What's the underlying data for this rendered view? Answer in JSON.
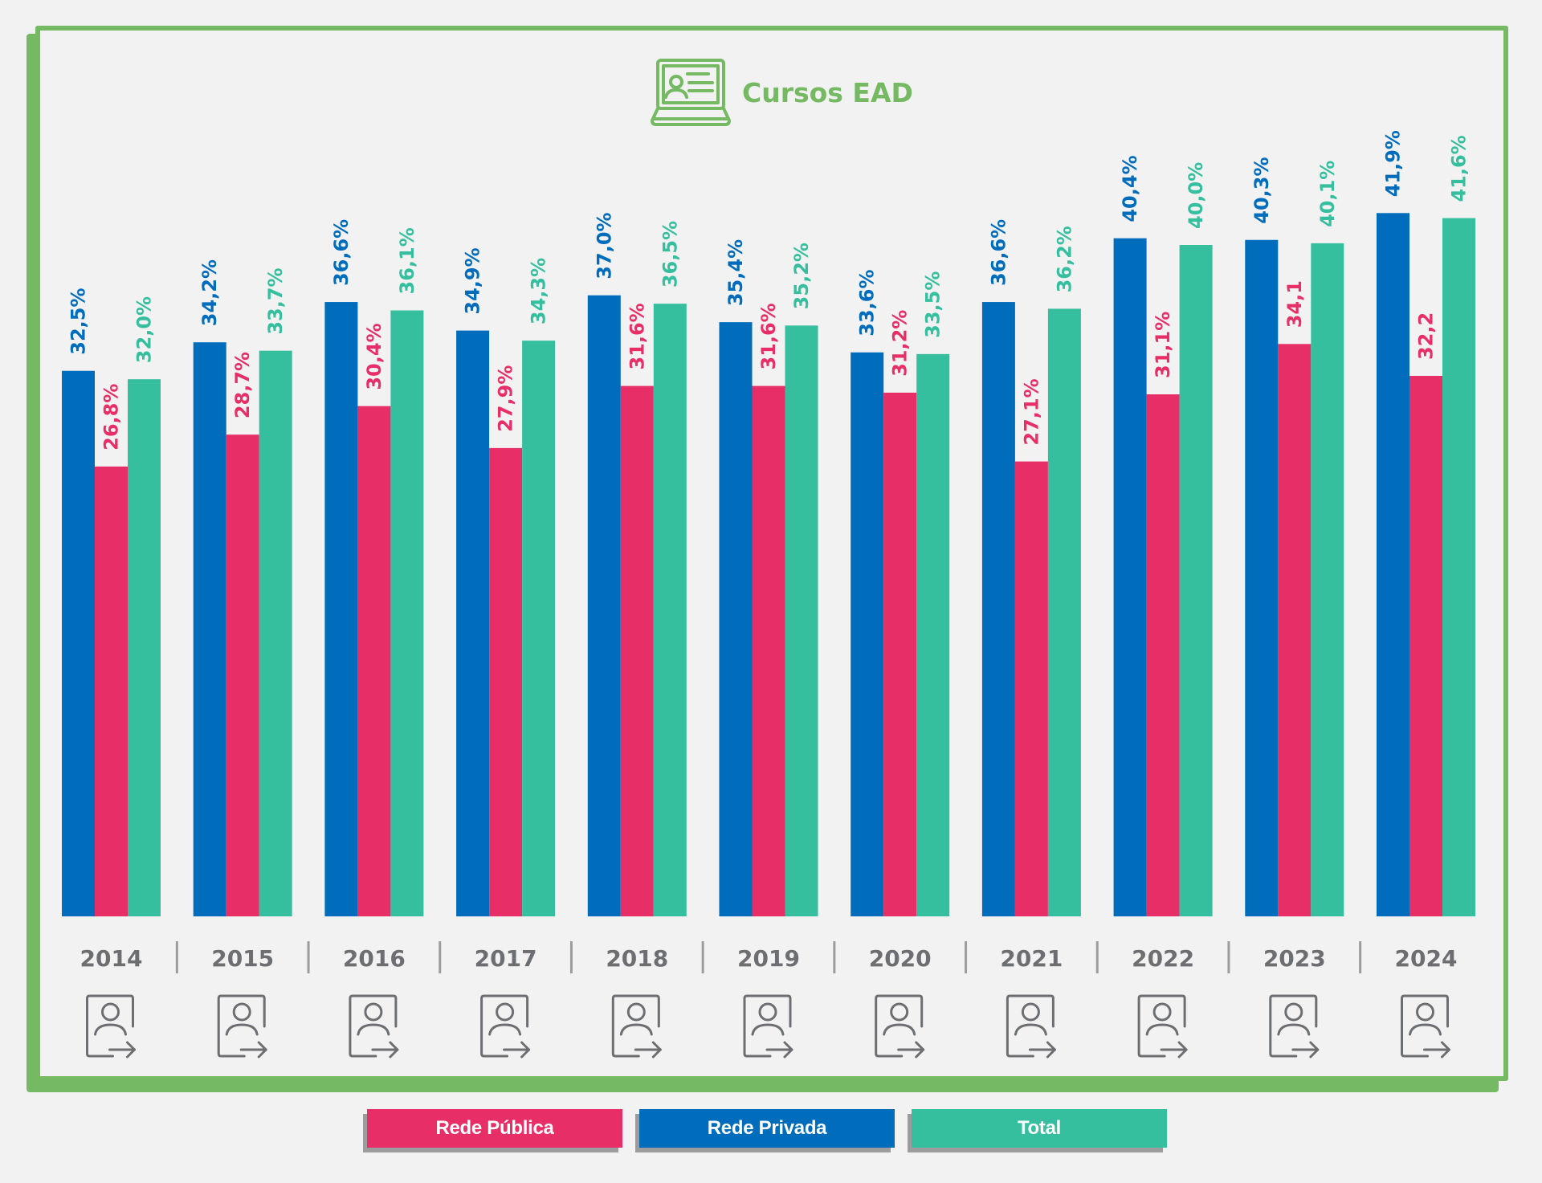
{
  "title": "Cursos EAD",
  "title_icon": "laptop-profile-icon",
  "year_icon": "person-card-export-icon",
  "colors": {
    "frame": "#76b963",
    "publica": "#e72e67",
    "privada": "#006cbc",
    "total": "#35bf9e",
    "year_text": "#6d6e71",
    "background": "#f2f2f2"
  },
  "legend": [
    {
      "key": "publica",
      "label": "Rede Pública",
      "color": "#e72e67"
    },
    {
      "key": "privada",
      "label": "Rede Privada",
      "color": "#006cbc"
    },
    {
      "key": "total",
      "label": "Total",
      "color": "#35bf9e"
    }
  ],
  "chart_data": {
    "type": "bar",
    "title": "Cursos EAD",
    "xlabel": "",
    "ylabel": "",
    "ylim": [
      0,
      45
    ],
    "grid": false,
    "legend_position": "bottom",
    "categories": [
      "2014",
      "2015",
      "2016",
      "2017",
      "2018",
      "2019",
      "2020",
      "2021",
      "2022",
      "2023",
      "2024"
    ],
    "series": [
      {
        "name": "Rede Privada",
        "color": "#006cbc",
        "values": [
          32.5,
          34.2,
          36.6,
          34.9,
          37.0,
          35.4,
          33.6,
          36.6,
          40.4,
          40.3,
          41.9
        ],
        "labels": [
          "32,5%",
          "34,2%",
          "36,6%",
          "34,9%",
          "37,0%",
          "35,4%",
          "33,6%",
          "36,6%",
          "40,4%",
          "40,3%",
          "41,9%"
        ]
      },
      {
        "name": "Rede Pública",
        "color": "#e72e67",
        "values": [
          26.8,
          28.7,
          30.4,
          27.9,
          31.6,
          31.6,
          31.2,
          27.1,
          31.1,
          34.1,
          32.2
        ],
        "labels": [
          "26,8%",
          "28,7%",
          "30,4%",
          "27,9%",
          "31,6%",
          "31,6%",
          "31,2%",
          "27,1%",
          "31,1%",
          "34,1",
          "32,2"
        ]
      },
      {
        "name": "Total",
        "color": "#35bf9e",
        "values": [
          32.0,
          33.7,
          36.1,
          34.3,
          36.5,
          35.2,
          33.5,
          36.2,
          40.0,
          40.1,
          41.6
        ],
        "labels": [
          "32,0%",
          "33,7%",
          "36,1%",
          "34,3%",
          "36,5%",
          "35,2%",
          "33,5%",
          "36,2%",
          "40,0%",
          "40,1%",
          "41,6%"
        ]
      }
    ]
  }
}
